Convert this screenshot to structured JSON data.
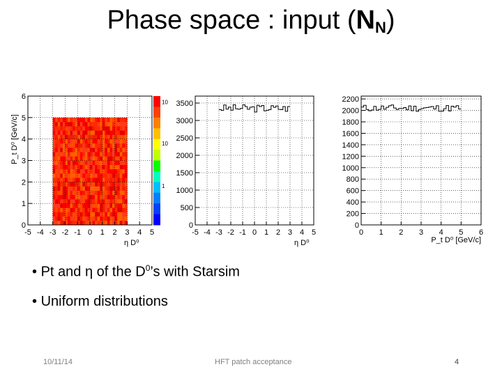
{
  "slide": {
    "title_prefix": "Phase space : input (",
    "title_bold": "N",
    "title_sub": "N",
    "title_suffix": ")",
    "bullets": [
      {
        "mark": "•",
        "text_before": "Pt and ",
        "eta": "η",
        "text_mid": " of the D",
        "sup": "0",
        "text_after": "’s with Starsim"
      },
      {
        "mark": "•",
        "text": "Uniform distributions"
      }
    ],
    "footer": {
      "date": "10/11/14",
      "center": "HFT patch acceptance",
      "page": "4"
    }
  },
  "chart_data": [
    {
      "type": "heatmap",
      "xlabel": "η D⁰",
      "ylabel": "P_t D⁰ [GeV/c]",
      "xlim": [
        -5,
        5
      ],
      "ylim": [
        0,
        6
      ],
      "x_tick_labels": [
        "-5",
        "-4",
        "-3",
        "-2",
        "-1",
        "0",
        "1",
        "2",
        "3",
        "4",
        "5"
      ],
      "y_tick_labels": [
        "0",
        "1",
        "2",
        "3",
        "4",
        "5",
        "6"
      ],
      "filled_region": {
        "x": [
          -3,
          3
        ],
        "y": [
          0,
          5
        ]
      },
      "colorbar_labels": [
        "10",
        "10",
        "1"
      ],
      "grid": true
    },
    {
      "type": "line",
      "xlabel": "η D⁰",
      "xlim": [
        -5,
        5
      ],
      "ylim": [
        0,
        3700
      ],
      "x_tick_labels": [
        "-5",
        "-4",
        "-3",
        "-2",
        "-1",
        "0",
        "1",
        "2",
        "3",
        "4",
        "5"
      ],
      "y_tick_labels": [
        "0",
        "500",
        "1000",
        "1500",
        "2000",
        "2500",
        "3000",
        "3500"
      ],
      "series": [
        {
          "x_range": [
            -3,
            3
          ],
          "level": 3350
        }
      ],
      "grid": true
    },
    {
      "type": "line",
      "xlabel": "P_t D⁰ [GeV/c]",
      "xlim": [
        0,
        6
      ],
      "ylim": [
        0,
        2250
      ],
      "x_tick_labels": [
        "0",
        "1",
        "2",
        "3",
        "4",
        "5",
        "6"
      ],
      "y_tick_labels": [
        "0",
        "200",
        "400",
        "600",
        "800",
        "1000",
        "1200",
        "1400",
        "1600",
        "1800",
        "2000",
        "2200"
      ],
      "series": [
        {
          "x_range": [
            0,
            5
          ],
          "level": 2040
        }
      ],
      "grid": true
    }
  ]
}
